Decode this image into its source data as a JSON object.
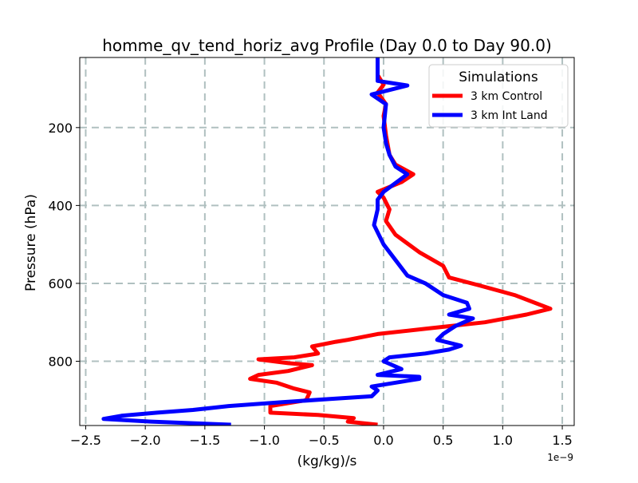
{
  "chart_data": {
    "type": "line",
    "title": "homme_qv_tend_horiz_avg Profile (Day 0.0 to Day 90.0)",
    "xlabel": "(kg/kg)/s",
    "ylabel": "Pressure (hPa)",
    "x_offset_label": "1e−9",
    "xlim": [
      -2.55,
      1.6
    ],
    "ylim": [
      965,
      20
    ],
    "y_inverted": true,
    "grid": true,
    "legend": {
      "title": "Simulations",
      "placement": "top-right"
    },
    "x_ticks": [
      {
        "value": -2.5,
        "label": "−2.5"
      },
      {
        "value": -2.0,
        "label": "−2.0"
      },
      {
        "value": -1.5,
        "label": "−1.5"
      },
      {
        "value": -1.0,
        "label": "−1.0"
      },
      {
        "value": -0.5,
        "label": "−0.5"
      },
      {
        "value": 0.0,
        "label": "0.0"
      },
      {
        "value": 0.5,
        "label": "0.5"
      },
      {
        "value": 1.0,
        "label": "1.0"
      },
      {
        "value": 1.5,
        "label": "1.5"
      }
    ],
    "y_ticks": [
      {
        "value": 200,
        "label": "200"
      },
      {
        "value": 400,
        "label": "400"
      },
      {
        "value": 600,
        "label": "600"
      },
      {
        "value": 800,
        "label": "800"
      }
    ],
    "series": [
      {
        "name": "3 km Control",
        "color": "#ff0000",
        "points": [
          [
            -0.05,
            963
          ],
          [
            -0.3,
            955
          ],
          [
            -0.25,
            946
          ],
          [
            -0.55,
            938
          ],
          [
            -0.95,
            932
          ],
          [
            -0.95,
            915
          ],
          [
            -0.65,
            900
          ],
          [
            -0.62,
            880
          ],
          [
            -0.75,
            870
          ],
          [
            -0.9,
            855
          ],
          [
            -1.12,
            845
          ],
          [
            -1.05,
            835
          ],
          [
            -0.8,
            825
          ],
          [
            -0.6,
            810
          ],
          [
            -0.8,
            805
          ],
          [
            -1.05,
            795
          ],
          [
            -0.75,
            790
          ],
          [
            -0.55,
            780
          ],
          [
            -0.6,
            762
          ],
          [
            -0.4,
            750
          ],
          [
            -0.3,
            745
          ],
          [
            -0.05,
            730
          ],
          [
            0.4,
            715
          ],
          [
            0.85,
            700
          ],
          [
            1.2,
            680
          ],
          [
            1.4,
            665
          ],
          [
            1.1,
            630
          ],
          [
            0.8,
            605
          ],
          [
            0.55,
            585
          ],
          [
            0.5,
            555
          ],
          [
            0.3,
            520
          ],
          [
            0.1,
            475
          ],
          [
            0.02,
            440
          ],
          [
            0.05,
            410
          ],
          [
            0.0,
            380
          ],
          [
            -0.05,
            365
          ],
          [
            0.15,
            340
          ],
          [
            0.25,
            320
          ],
          [
            0.1,
            295
          ],
          [
            0.05,
            270
          ],
          [
            0.02,
            220
          ],
          [
            0.0,
            170
          ],
          [
            0.02,
            140
          ],
          [
            -0.05,
            110
          ],
          [
            0.0,
            90
          ],
          [
            -0.05,
            65
          ],
          [
            -0.05,
            20
          ]
        ]
      },
      {
        "name": "3 km Int Land",
        "color": "#0000ff",
        "points": [
          [
            -1.28,
            963
          ],
          [
            -1.95,
            955
          ],
          [
            -2.35,
            948
          ],
          [
            -2.2,
            940
          ],
          [
            -1.9,
            932
          ],
          [
            -1.6,
            925
          ],
          [
            -1.3,
            915
          ],
          [
            -0.85,
            905
          ],
          [
            -0.45,
            897
          ],
          [
            -0.1,
            890
          ],
          [
            -0.05,
            875
          ],
          [
            -0.1,
            865
          ],
          [
            0.3,
            845
          ],
          [
            0.3,
            840
          ],
          [
            -0.05,
            835
          ],
          [
            0.15,
            820
          ],
          [
            0.0,
            800
          ],
          [
            0.05,
            790
          ],
          [
            0.35,
            780
          ],
          [
            0.55,
            770
          ],
          [
            0.65,
            760
          ],
          [
            0.45,
            745
          ],
          [
            0.5,
            730
          ],
          [
            0.6,
            710
          ],
          [
            0.75,
            690
          ],
          [
            0.55,
            680
          ],
          [
            0.72,
            665
          ],
          [
            0.7,
            650
          ],
          [
            0.5,
            630
          ],
          [
            0.35,
            600
          ],
          [
            0.2,
            580
          ],
          [
            0.1,
            540
          ],
          [
            0.0,
            500
          ],
          [
            -0.08,
            450
          ],
          [
            -0.05,
            410
          ],
          [
            -0.05,
            385
          ],
          [
            0.0,
            365
          ],
          [
            0.2,
            320
          ],
          [
            0.1,
            300
          ],
          [
            0.05,
            270
          ],
          [
            0.02,
            240
          ],
          [
            0.0,
            200
          ],
          [
            0.02,
            140
          ],
          [
            -0.1,
            115
          ],
          [
            0.2,
            92
          ],
          [
            -0.05,
            80
          ],
          [
            -0.05,
            20
          ]
        ]
      }
    ]
  }
}
